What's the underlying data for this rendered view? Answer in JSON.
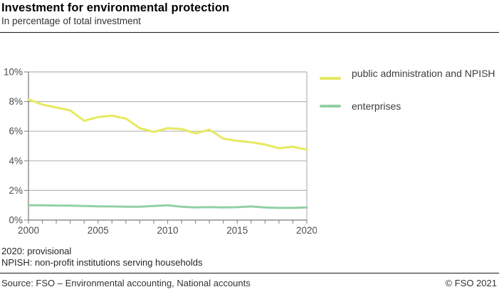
{
  "header": {
    "title": "Investment for environmental protection",
    "subtitle": "In percentage of total investment"
  },
  "chart_data": {
    "type": "line",
    "title": "Investment for environmental protection",
    "subtitle": "In percentage of total investment",
    "xlabel": "",
    "ylabel": "",
    "x": [
      2000,
      2001,
      2002,
      2003,
      2004,
      2005,
      2006,
      2007,
      2008,
      2009,
      2010,
      2011,
      2012,
      2013,
      2014,
      2015,
      2016,
      2017,
      2018,
      2019,
      2020
    ],
    "series": [
      {
        "name": "public administration and NPISH",
        "color": "#e6e960",
        "values": [
          8.15,
          7.8,
          7.6,
          7.4,
          6.7,
          6.95,
          7.05,
          6.85,
          6.2,
          5.95,
          6.2,
          6.15,
          5.85,
          6.1,
          5.5,
          5.35,
          5.25,
          5.1,
          4.85,
          4.95,
          4.75
        ]
      },
      {
        "name": "enterprises",
        "color": "#92d0a5",
        "values": [
          1.0,
          1.0,
          0.98,
          0.97,
          0.95,
          0.93,
          0.92,
          0.9,
          0.9,
          0.95,
          1.0,
          0.9,
          0.85,
          0.88,
          0.85,
          0.87,
          0.92,
          0.85,
          0.82,
          0.82,
          0.85
        ]
      }
    ],
    "ylim": [
      0,
      10
    ],
    "ytick_step": 2,
    "ytick_suffix": "%",
    "xticks_labeled": [
      2000,
      2005,
      2010,
      2015,
      2020
    ],
    "grid": "horizontal",
    "legend_position": "right"
  },
  "legend": {
    "items": [
      {
        "label": "public administration and NPISH"
      },
      {
        "label": "enterprises"
      }
    ]
  },
  "notes": {
    "line1": "2020: provisional",
    "line2": "NPISH: non-profit institutions serving households"
  },
  "footer": {
    "source": "Source: FSO – Environmental accounting, National accounts",
    "copyright": "© FSO 2021"
  },
  "colors": {
    "gridline": "#b5b5b5",
    "axis": "#909090",
    "tick_label": "#4d4d4d"
  }
}
